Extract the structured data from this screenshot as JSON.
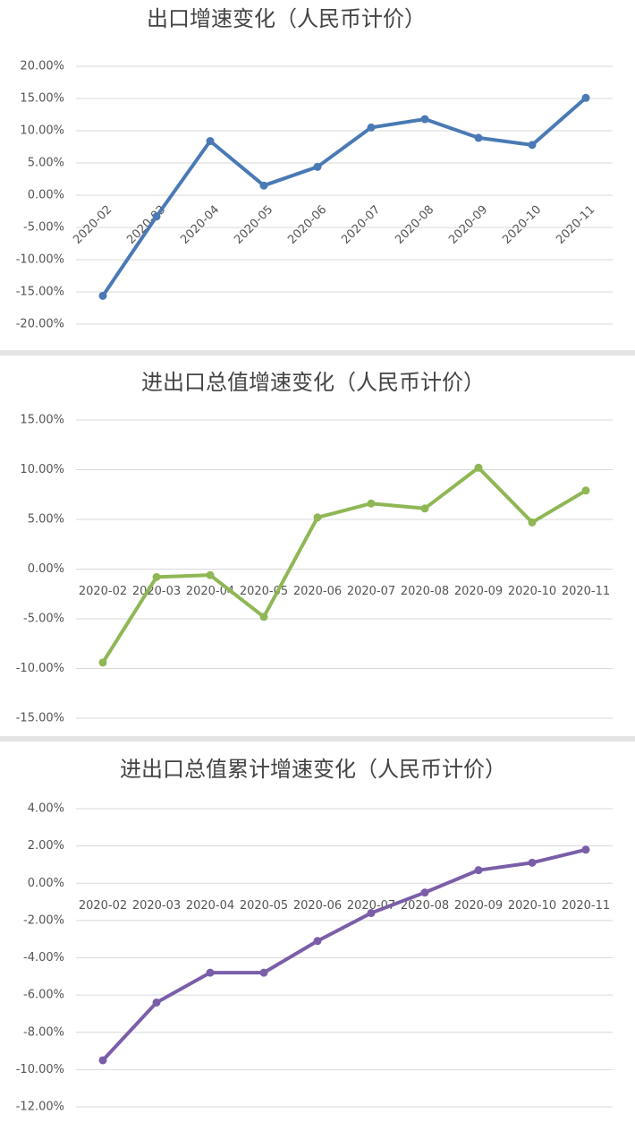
{
  "chart_data": [
    {
      "type": "line",
      "title": "出口增速变化（人民币计价）",
      "categories": [
        "2020-02",
        "2020-03",
        "2020-04",
        "2020-05",
        "2020-06",
        "2020-07",
        "2020-08",
        "2020-09",
        "2020-10",
        "2020-11"
      ],
      "series": [
        {
          "color": "#4a7ab5",
          "values": [
            -15.6,
            -3.3,
            8.4,
            1.5,
            4.4,
            10.5,
            11.8,
            8.9,
            7.8,
            15.1
          ]
        }
      ],
      "ylim": [
        -20,
        20
      ],
      "yticks": [
        {
          "value": -20,
          "label": "-20.00%"
        },
        {
          "value": -15,
          "label": "-15.00%"
        },
        {
          "value": -10,
          "label": "-10.00%"
        },
        {
          "value": -5,
          "label": "-5.00%"
        },
        {
          "value": 0,
          "label": "0.00%"
        },
        {
          "value": 5,
          "label": "5.00%"
        },
        {
          "value": 10,
          "label": "10.00%"
        },
        {
          "value": 15,
          "label": "15.00%"
        },
        {
          "value": 20,
          "label": "20.00%"
        }
      ],
      "grid": true
    },
    {
      "type": "line",
      "title": "进出口总值增速变化（人民币计价）",
      "categories": [
        "2020-02",
        "2020-03",
        "2020-04",
        "2020-05",
        "2020-06",
        "2020-07",
        "2020-08",
        "2020-09",
        "2020-10",
        "2020-11"
      ],
      "series": [
        {
          "color": "#8fb755",
          "values": [
            -9.4,
            -0.8,
            -0.6,
            -4.8,
            5.2,
            6.6,
            6.1,
            10.2,
            4.7,
            7.9
          ]
        }
      ],
      "ylim": [
        -15,
        15
      ],
      "yticks": [
        {
          "value": -15,
          "label": "-15.00%"
        },
        {
          "value": -10,
          "label": "-10.00%"
        },
        {
          "value": -5,
          "label": "-5.00%"
        },
        {
          "value": 0,
          "label": "0.00%"
        },
        {
          "value": 5,
          "label": "5.00%"
        },
        {
          "value": 10,
          "label": "10.00%"
        },
        {
          "value": 15,
          "label": "15.00%"
        }
      ],
      "grid": true
    },
    {
      "type": "line",
      "title": "进出口总值累计增速变化（人民币计价）",
      "categories": [
        "2020-02",
        "2020-03",
        "2020-04",
        "2020-05",
        "2020-06",
        "2020-07",
        "2020-08",
        "2020-09",
        "2020-10",
        "2020-11"
      ],
      "series": [
        {
          "color": "#7b5ea8",
          "values": [
            -9.5,
            -6.4,
            -4.8,
            -4.8,
            -3.1,
            -1.6,
            -0.5,
            0.7,
            1.1,
            1.8
          ]
        }
      ],
      "ylim": [
        -12,
        4
      ],
      "yticks": [
        {
          "value": -12,
          "label": "-12.00%"
        },
        {
          "value": -10,
          "label": "-10.00%"
        },
        {
          "value": -8,
          "label": "-8.00%"
        },
        {
          "value": -6,
          "label": "-6.00%"
        },
        {
          "value": -4,
          "label": "-4.00%"
        },
        {
          "value": -2,
          "label": "-2.00%"
        },
        {
          "value": 0,
          "label": "0.00%"
        },
        {
          "value": 2,
          "label": "2.00%"
        },
        {
          "value": 4,
          "label": "4.00%"
        }
      ],
      "grid": true
    }
  ]
}
